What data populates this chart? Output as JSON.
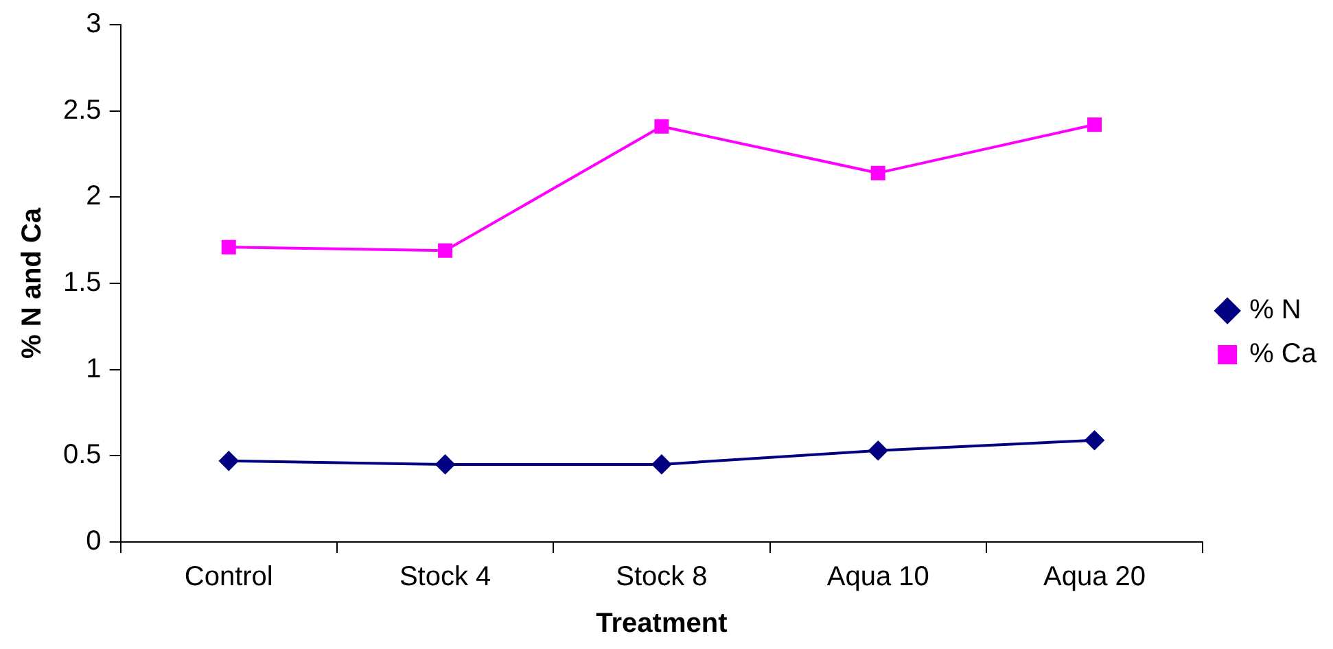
{
  "chart_data": {
    "type": "line",
    "xlabel": "Treatment",
    "ylabel": "% N and Ca",
    "categories": [
      "Control",
      "Stock 4",
      "Stock 8",
      "Aqua 10",
      "Aqua 20"
    ],
    "series": [
      {
        "name": "% N",
        "color": "#000080",
        "marker": "diamond",
        "values": [
          0.47,
          0.45,
          0.45,
          0.53,
          0.59
        ]
      },
      {
        "name": "% Ca",
        "color": "#ff00ff",
        "marker": "square",
        "values": [
          1.71,
          1.69,
          2.41,
          2.14,
          2.42
        ]
      }
    ],
    "ylim": [
      0,
      3
    ],
    "yticks": [
      0,
      0.5,
      1,
      1.5,
      2,
      2.5,
      3
    ],
    "grid": false,
    "legend": "right",
    "line_style": "solid"
  }
}
